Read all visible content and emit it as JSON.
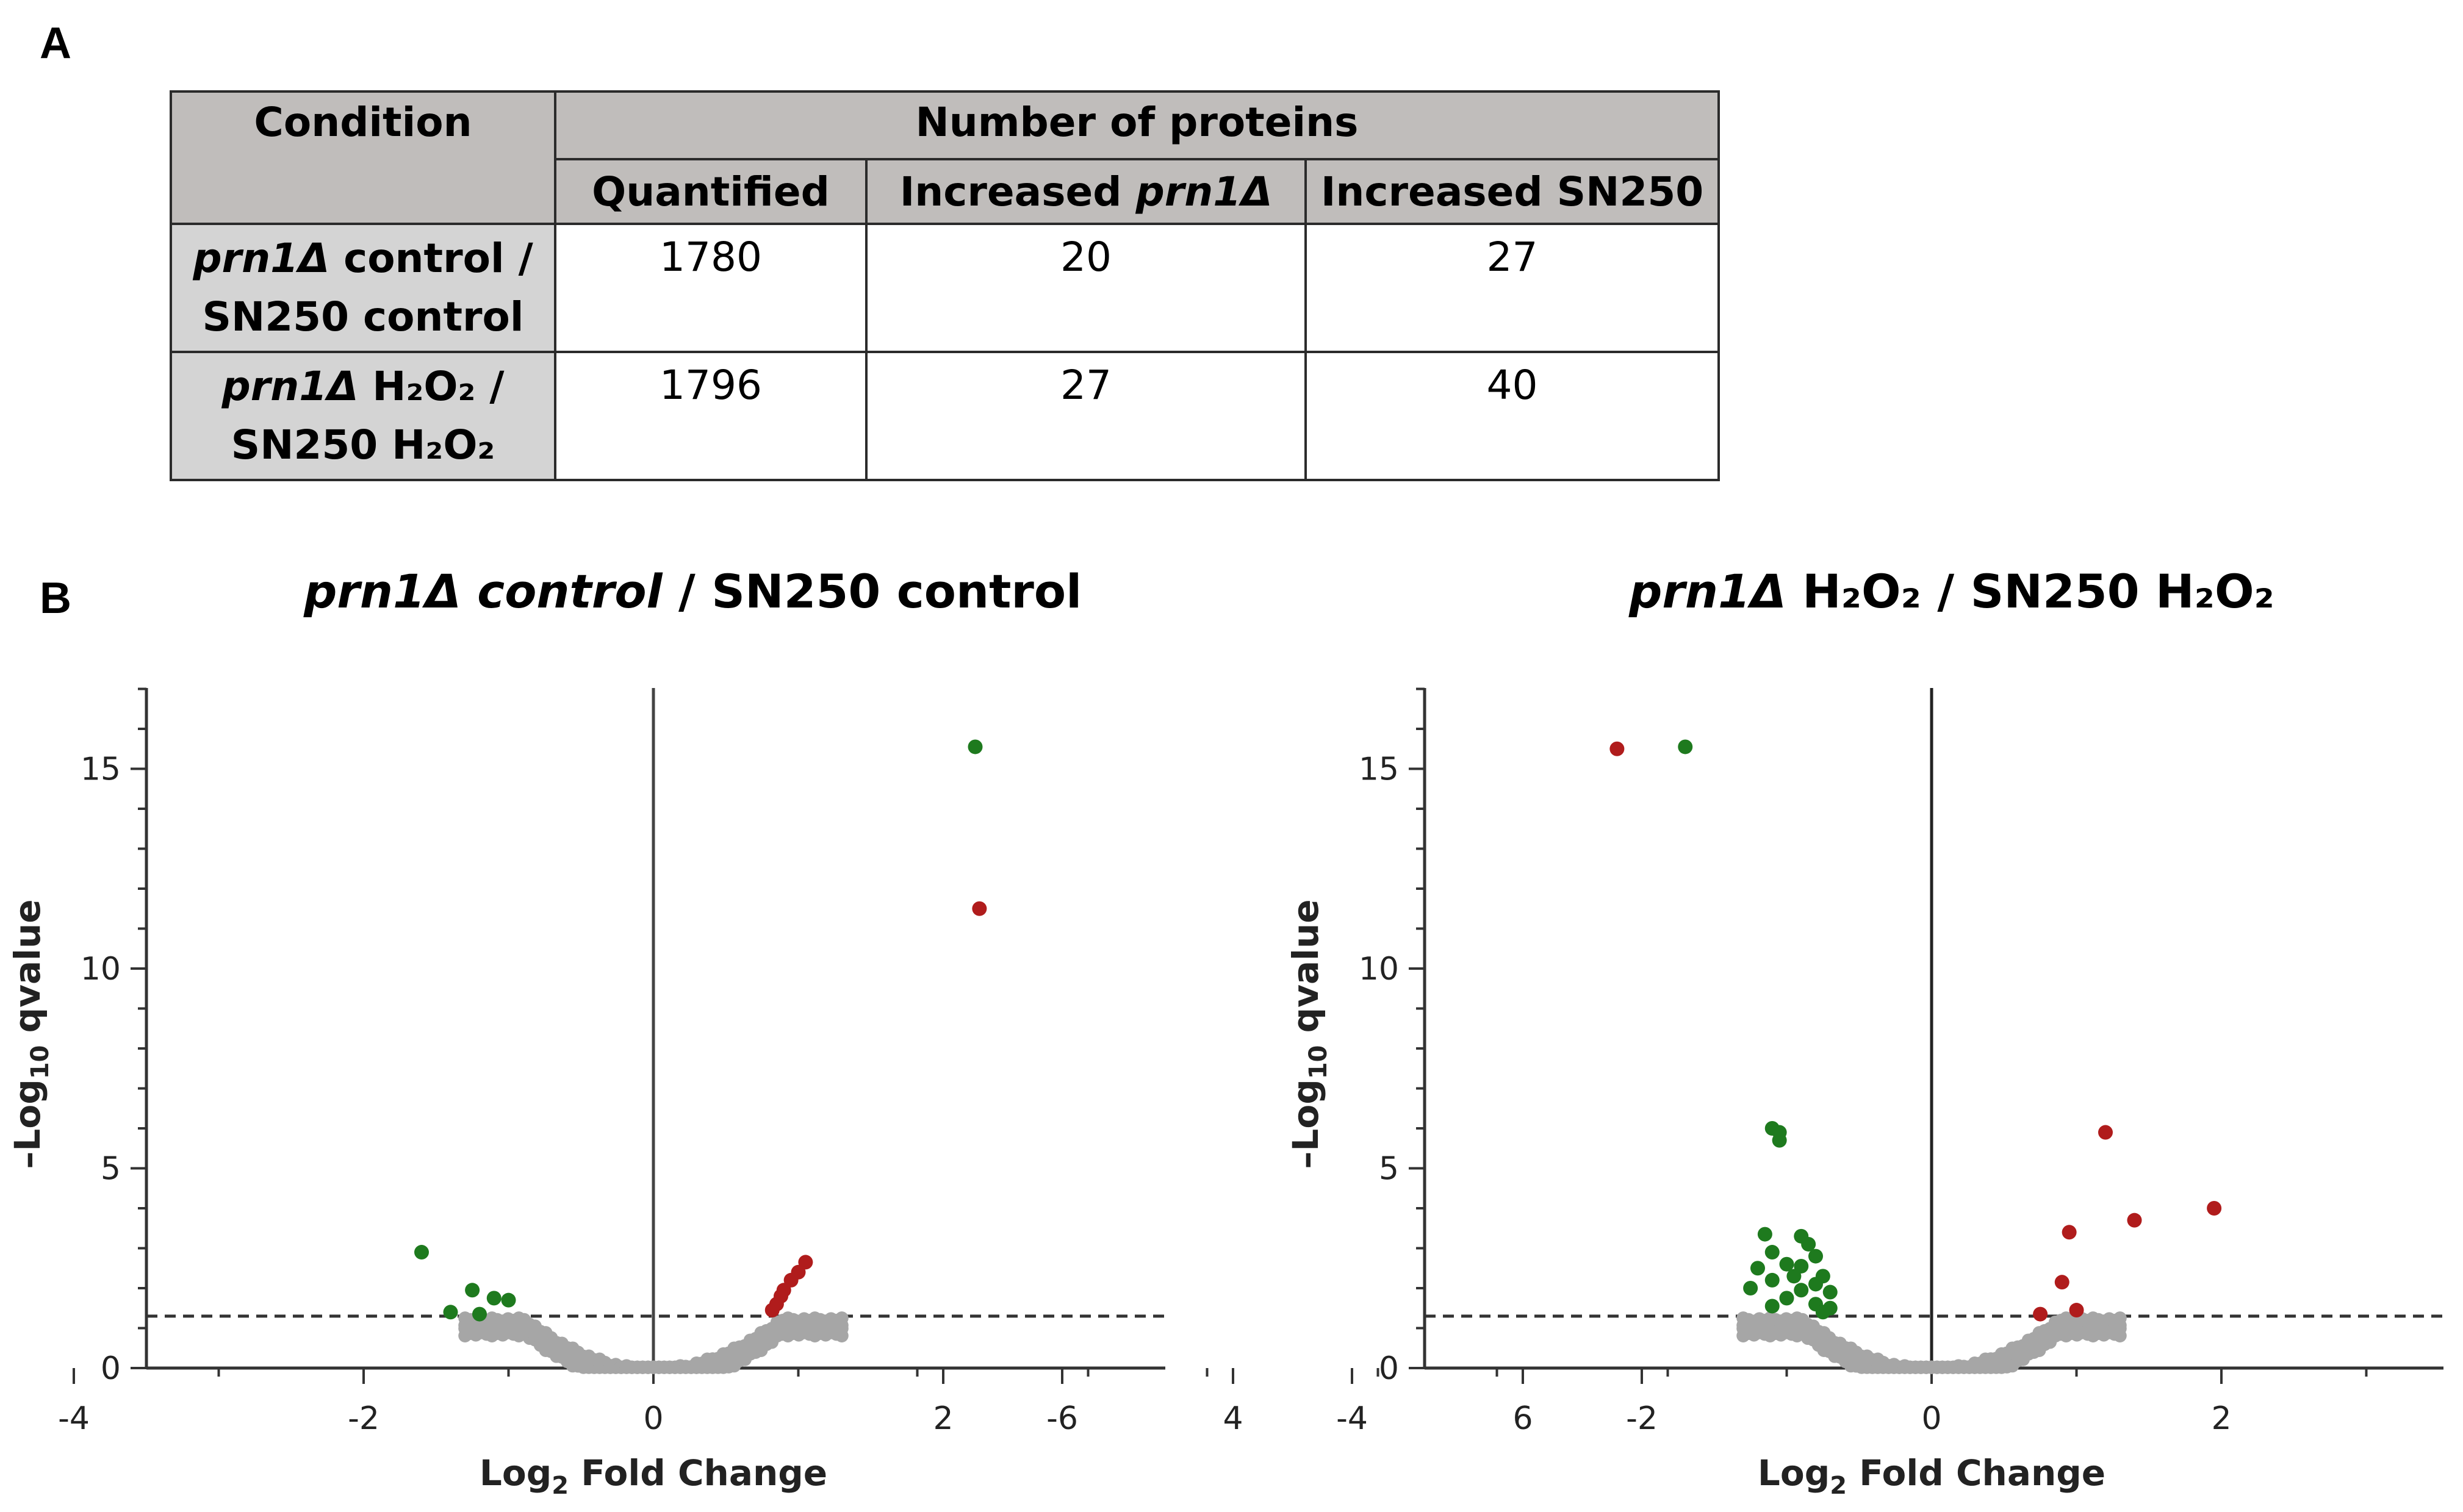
{
  "panel_a_letter": "A",
  "panel_b_letter": "B",
  "table": {
    "header_condition": "Condition",
    "header_number": "Number of proteins",
    "col_quantified": "Quantified",
    "col_increased_mut_prefix": "Increased ",
    "col_increased_mut_gene": "prn1Δ",
    "col_increased_wt": "Increased SN250",
    "rows": [
      {
        "gene": "prn1Δ",
        "cond_rest1": " control /",
        "cond_line2": "SN250 control",
        "quantified": "1780",
        "increased_mut": "20",
        "increased_wt": "27"
      },
      {
        "gene": "prn1Δ",
        "cond_rest1": " H₂O₂ /",
        "cond_line2": "SN250 H₂O₂",
        "quantified": "1796",
        "increased_mut": "27",
        "increased_wt": "40"
      }
    ]
  },
  "titles": {
    "left_italic": "prn1Δ control",
    "left_rest": " / SN250 control",
    "right_italic": "prn1Δ",
    "right_rest": " H₂O₂ / SN250 H₂O₂"
  },
  "chart_data": [
    {
      "type": "scatter",
      "title": "prn1Δ control / SN250 control",
      "xlabel_base": "Log",
      "xlabel_sub": "2",
      "xlabel_rest": " Fold Change",
      "ylabel_base": "–Log",
      "ylabel_sub": "10",
      "ylabel_rest": " qvalue",
      "xlim": [
        -7,
        7
      ],
      "ylim": [
        0,
        17
      ],
      "x_ticks": [
        -6,
        -4,
        -2,
        0,
        2,
        4,
        6
      ],
      "y_ticks": [
        0,
        5,
        10,
        15
      ],
      "threshold_y": 1.3,
      "colors": {
        "down": "#1e7a1e",
        "up": "#b01c1c",
        "ns": "#a6a6a6",
        "axis": "#444444"
      },
      "series": [
        {
          "name": "Increased SN250",
          "color_key": "down",
          "points": [
            [
              -6.6,
              15.5
            ],
            [
              -1.6,
              2.9
            ],
            [
              -1.25,
              1.95
            ],
            [
              -1.1,
              1.75
            ],
            [
              -1.0,
              1.7
            ],
            [
              -1.4,
              1.4
            ],
            [
              -1.2,
              1.35
            ]
          ]
        },
        {
          "name": "Increased prn1Δ",
          "color_key": "up",
          "points": [
            [
              6.65,
              15.5
            ],
            [
              2.25,
              11.5
            ],
            [
              1.05,
              2.65
            ],
            [
              1.0,
              2.4
            ],
            [
              0.95,
              2.2
            ],
            [
              0.9,
              1.95
            ],
            [
              0.88,
              1.8
            ],
            [
              0.85,
              1.6
            ],
            [
              0.82,
              1.45
            ]
          ]
        }
      ]
    },
    {
      "type": "scatter",
      "title": "prn1Δ H₂O₂ / SN250 H₂O₂",
      "xlabel_base": "Log",
      "xlabel_sub": "2",
      "xlabel_rest": " Fold Change",
      "ylabel_base": "–Log",
      "ylabel_sub": "10",
      "ylabel_rest": " qvalue",
      "xlim": [
        -7,
        7
      ],
      "ylim": [
        0,
        17
      ],
      "x_ticks": [
        -6,
        -4,
        -2,
        0,
        2,
        4,
        6
      ],
      "y_ticks": [
        0,
        5,
        10,
        15
      ],
      "threshold_y": 1.3,
      "colors": {
        "down": "#1e7a1e",
        "up": "#b01c1c",
        "ns": "#a6a6a6",
        "axis": "#222222"
      },
      "series": [
        {
          "name": "Increased SN250",
          "color_key": "down",
          "points": [
            [
              -6.6,
              15.55
            ],
            [
              -1.7,
              15.55
            ],
            [
              -1.1,
              6.0
            ],
            [
              -1.05,
              5.9
            ],
            [
              -1.05,
              5.7
            ],
            [
              -1.15,
              3.35
            ],
            [
              -0.9,
              3.3
            ],
            [
              -0.85,
              3.1
            ],
            [
              -1.1,
              2.9
            ],
            [
              -0.8,
              2.8
            ],
            [
              -1.0,
              2.6
            ],
            [
              -0.9,
              2.55
            ],
            [
              -1.2,
              2.5
            ],
            [
              -0.95,
              2.3
            ],
            [
              -0.75,
              2.3
            ],
            [
              -1.1,
              2.2
            ],
            [
              -0.8,
              2.1
            ],
            [
              -1.25,
              2.0
            ],
            [
              -0.9,
              1.95
            ],
            [
              -0.7,
              1.9
            ],
            [
              -1.0,
              1.75
            ],
            [
              -0.8,
              1.6
            ],
            [
              -1.1,
              1.55
            ],
            [
              -0.7,
              1.5
            ],
            [
              -0.75,
              1.4
            ]
          ]
        },
        {
          "name": "Increased prn1Δ",
          "color_key": "up",
          "points": [
            [
              6.65,
              15.55
            ],
            [
              1.2,
              5.9
            ],
            [
              1.95,
              4.0
            ],
            [
              1.4,
              3.7
            ],
            [
              0.95,
              3.4
            ],
            [
              0.9,
              2.15
            ],
            [
              1.0,
              1.45
            ],
            [
              0.75,
              1.35
            ]
          ]
        }
      ]
    }
  ]
}
